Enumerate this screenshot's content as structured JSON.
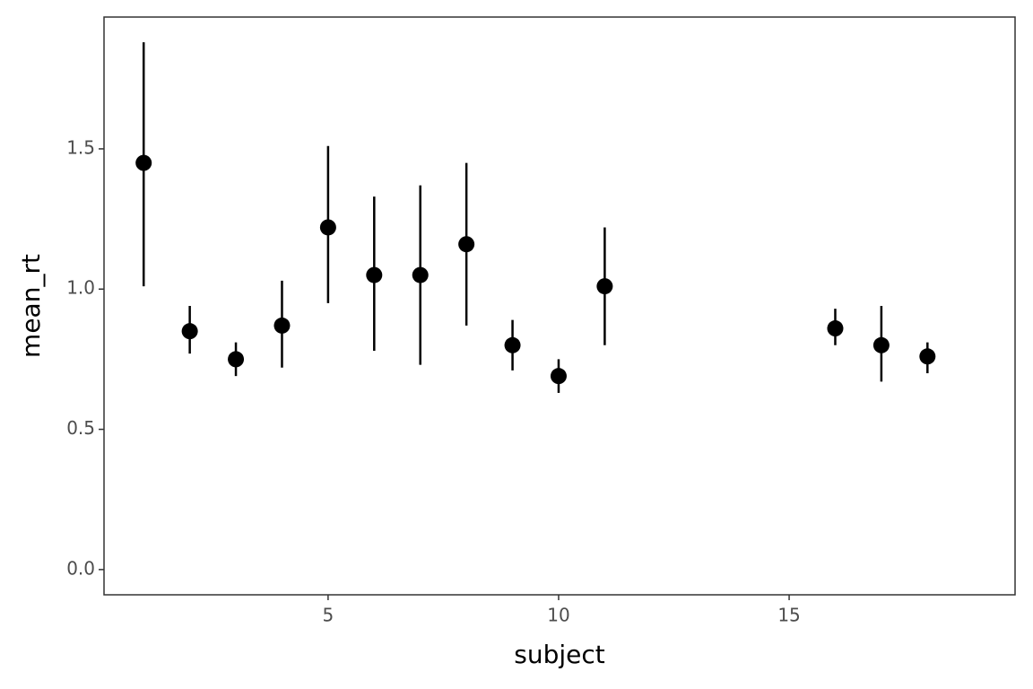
{
  "chart_data": {
    "type": "pointrange",
    "x_label": "subject",
    "y_label": "mean_rt",
    "x": [
      1,
      2,
      3,
      4,
      5,
      6,
      7,
      8,
      9,
      10,
      11,
      16,
      17,
      18
    ],
    "values": [
      1.45,
      0.85,
      0.75,
      0.87,
      1.22,
      1.05,
      1.05,
      1.16,
      0.8,
      0.69,
      1.01,
      0.86,
      0.8,
      0.76
    ],
    "ymin": [
      1.01,
      0.77,
      0.69,
      0.72,
      0.95,
      0.78,
      0.73,
      0.87,
      0.71,
      0.63,
      0.8,
      0.8,
      0.67,
      0.7
    ],
    "ymax": [
      1.88,
      0.94,
      0.81,
      1.03,
      1.51,
      1.33,
      1.37,
      1.45,
      0.89,
      0.75,
      1.22,
      0.93,
      0.94,
      0.81
    ],
    "color": "#000000",
    "xlim": [
      0.14,
      19.9
    ],
    "ylim": [
      -0.09,
      1.97
    ],
    "xticks": [
      5,
      10,
      15
    ],
    "yticks": [
      {
        "value": 0,
        "label": "0.0"
      },
      0.5,
      {
        "value": 1,
        "label": "1.0"
      },
      1.5
    ],
    "grid": false
  }
}
